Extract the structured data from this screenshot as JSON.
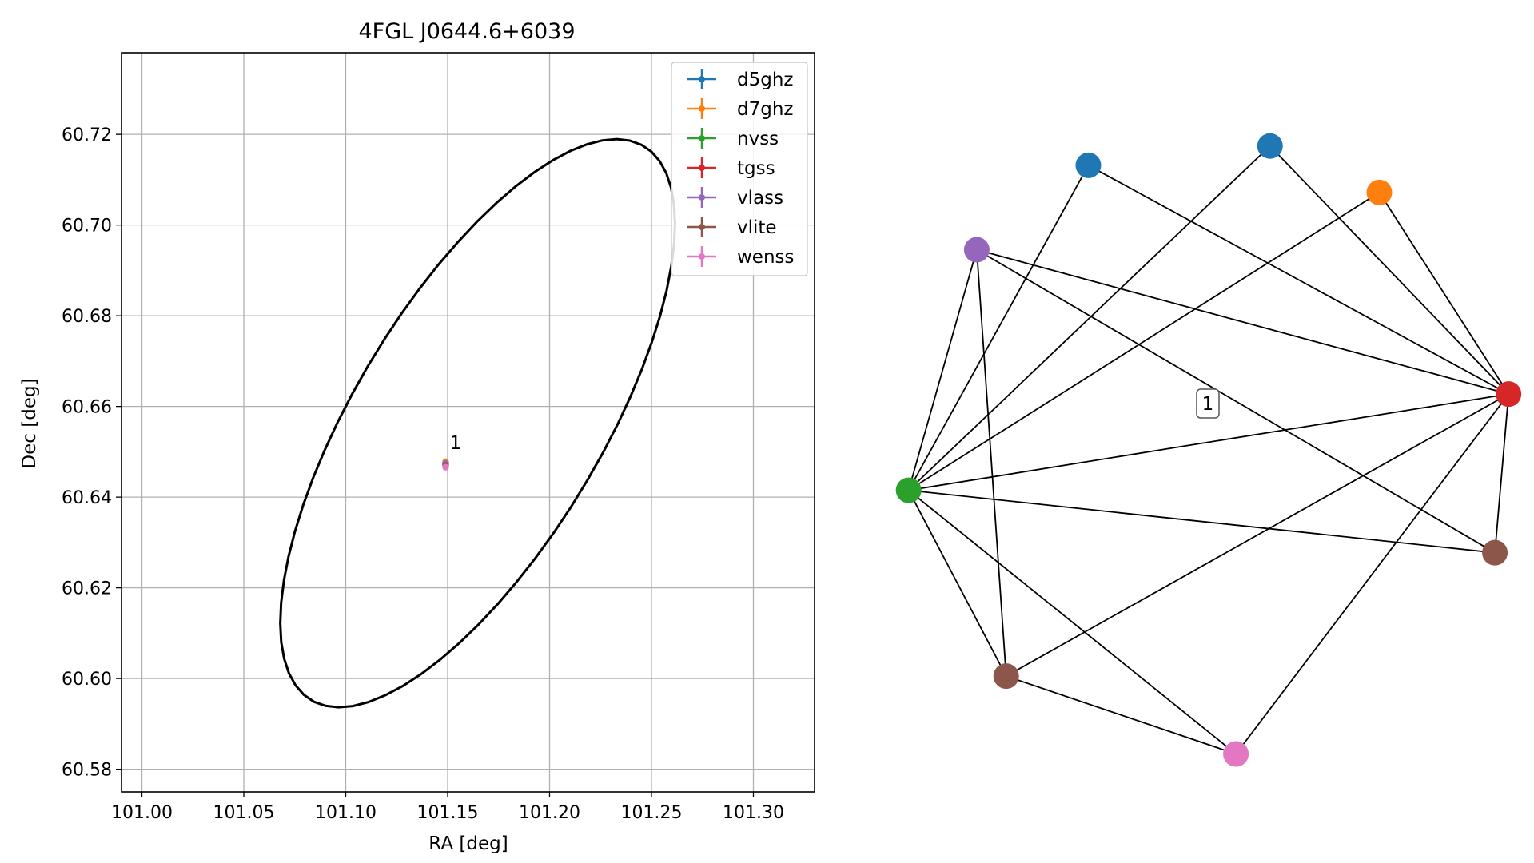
{
  "chart_data": [
    {
      "type": "scatter",
      "title": "4FGL J0644.6+6039",
      "xlabel": "RA [deg]",
      "ylabel": "Dec [deg]",
      "xlim": [
        100.99,
        101.33
      ],
      "ylim": [
        60.575,
        60.738
      ],
      "xticks": [
        101.0,
        101.05,
        101.1,
        101.15,
        101.2,
        101.25,
        101.3
      ],
      "xtick_labels": [
        "101.00",
        "101.05",
        "101.10",
        "101.15",
        "101.20",
        "101.25",
        "101.30"
      ],
      "yticks": [
        60.58,
        60.6,
        60.62,
        60.64,
        60.66,
        60.68,
        60.7,
        60.72
      ],
      "ytick_labels": [
        "60.58",
        "60.60",
        "60.62",
        "60.64",
        "60.66",
        "60.68",
        "60.70",
        "60.72"
      ],
      "grid": true,
      "legend_position": "top-right",
      "series": [
        {
          "name": "d5ghz",
          "color": "#1f77b4",
          "x": [
            101.149
          ],
          "y": [
            60.6475
          ]
        },
        {
          "name": "d7ghz",
          "color": "#ff7f0e",
          "x": [
            101.149
          ],
          "y": [
            60.6478
          ]
        },
        {
          "name": "nvss",
          "color": "#2ca02c",
          "x": [
            101.149
          ],
          "y": [
            60.6472
          ]
        },
        {
          "name": "tgss",
          "color": "#d62728",
          "x": [
            101.149
          ],
          "y": [
            60.6473
          ]
        },
        {
          "name": "vlass",
          "color": "#9467bd",
          "x": [
            101.149
          ],
          "y": [
            60.6474
          ]
        },
        {
          "name": "vlite",
          "color": "#8c564b",
          "x": [
            101.149
          ],
          "y": [
            60.647
          ]
        },
        {
          "name": "wenss",
          "color": "#e377c2",
          "x": [
            101.149
          ],
          "y": [
            60.6466
          ]
        }
      ],
      "ellipse": {
        "center": [
          101.1647,
          60.6563
        ],
        "semi_major": 0.1082,
        "semi_minor": 0.0399,
        "angle_deg": 28.7,
        "color": "#000000"
      },
      "annotations": [
        {
          "text": "1",
          "x": 101.151,
          "y": 60.6495
        }
      ]
    },
    {
      "type": "network",
      "nodes": [
        {
          "id": "n0",
          "color": "#1f77b4"
        },
        {
          "id": "n1",
          "color": "#1f77b4"
        },
        {
          "id": "n2",
          "color": "#ff7f0e"
        },
        {
          "id": "n3",
          "color": "#9467bd"
        },
        {
          "id": "n4",
          "color": "#d62728"
        },
        {
          "id": "n5",
          "color": "#2ca02c"
        },
        {
          "id": "n6",
          "color": "#8c564b"
        },
        {
          "id": "n7",
          "color": "#8c564b"
        },
        {
          "id": "n8",
          "color": "#e377c2"
        }
      ],
      "edges": [
        [
          "n0",
          "n5"
        ],
        [
          "n0",
          "n4"
        ],
        [
          "n1",
          "n5"
        ],
        [
          "n1",
          "n4"
        ],
        [
          "n2",
          "n5"
        ],
        [
          "n2",
          "n4"
        ],
        [
          "n3",
          "n5"
        ],
        [
          "n3",
          "n4"
        ],
        [
          "n3",
          "n6"
        ],
        [
          "n3",
          "n7"
        ],
        [
          "n5",
          "n4"
        ],
        [
          "n5",
          "n6"
        ],
        [
          "n5",
          "n7"
        ],
        [
          "n5",
          "n8"
        ],
        [
          "n6",
          "n4"
        ],
        [
          "n6",
          "n8"
        ],
        [
          "n7",
          "n4"
        ],
        [
          "n8",
          "n4"
        ]
      ],
      "cluster_label": "1"
    }
  ]
}
